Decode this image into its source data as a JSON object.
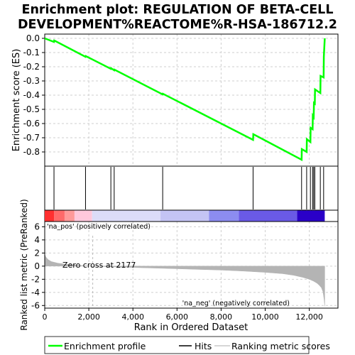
{
  "chart_data": {
    "type": "line",
    "title_line1": "Enrichment plot: REGULATION OF BETA-CELL",
    "title_line2": "DEVELOPMENT%REACTOME%R-HSA-186712.2",
    "es_panel": {
      "ylabel": "Enrichment score (ES)",
      "yticks": [
        0.0,
        -0.1,
        -0.2,
        -0.3,
        -0.4,
        -0.5,
        -0.6,
        -0.7,
        -0.8
      ],
      "ylim": [
        -0.9,
        0.03
      ],
      "series_color": "#00ff00",
      "profile_x": [
        0,
        420,
        430,
        1850,
        1860,
        3000,
        3010,
        3150,
        3160,
        5350,
        5360,
        9450,
        9460,
        11650,
        11660,
        11880,
        11890,
        12050,
        12060,
        12150,
        12160,
        12200,
        12210,
        12250,
        12260,
        12500,
        12510,
        12650,
        12660,
        12700
      ],
      "profile_y": [
        0.0,
        -0.025,
        -0.015,
        -0.13,
        -0.125,
        -0.215,
        -0.21,
        -0.225,
        -0.22,
        -0.395,
        -0.39,
        -0.715,
        -0.675,
        -0.855,
        -0.78,
        -0.8,
        -0.71,
        -0.73,
        -0.63,
        -0.64,
        -0.545,
        -0.555,
        -0.455,
        -0.46,
        -0.36,
        -0.385,
        -0.265,
        -0.275,
        -0.13,
        0.0
      ]
    },
    "hits": [
      420,
      1850,
      3000,
      3150,
      5350,
      9450,
      11650,
      11880,
      12050,
      12150,
      12200,
      12250,
      12500,
      12650
    ],
    "color_band": [
      {
        "from": 0,
        "to": 420,
        "color": "#ff3030"
      },
      {
        "from": 420,
        "to": 900,
        "color": "#ff6a6a"
      },
      {
        "from": 900,
        "to": 1350,
        "color": "#ff9a9a"
      },
      {
        "from": 1350,
        "to": 2150,
        "color": "#ffc8dc"
      },
      {
        "from": 2150,
        "to": 5250,
        "color": "#dcdcf8"
      },
      {
        "from": 5250,
        "to": 7450,
        "color": "#c4c4f4"
      },
      {
        "from": 7450,
        "to": 8800,
        "color": "#8c8cf0"
      },
      {
        "from": 8800,
        "to": 11450,
        "color": "#6a5ae6"
      },
      {
        "from": 11450,
        "to": 12700,
        "color": "#2a00c8"
      }
    ],
    "metric_panel": {
      "ylabel": "Ranked list metric (PreRanked)",
      "yticks": [
        6,
        4,
        2,
        0,
        -2,
        -4,
        -6
      ],
      "ylim": [
        -6.4,
        6.8
      ],
      "zero_cross_label": "Zero cross at 2177",
      "zero_cross": 2177,
      "pos_label": "'na_pos' (positively correlated)",
      "neg_label": "'na_neg' (negatively correlated)",
      "pos_color": "#ff0000",
      "neg_color": "#0000ff",
      "fill_color": "#b4b4b4",
      "curve_x": [
        0,
        50,
        150,
        300,
        600,
        1000,
        1500,
        2177,
        3000,
        4000,
        5000,
        6000,
        7000,
        8000,
        9000,
        10000,
        10800,
        11300,
        11700,
        12000,
        12200,
        12350,
        12450,
        12550,
        12620,
        12670,
        12700
      ],
      "curve_y": [
        1.8,
        1.4,
        1.0,
        0.7,
        0.45,
        0.28,
        0.12,
        0.0,
        -0.1,
        -0.2,
        -0.3,
        -0.4,
        -0.5,
        -0.6,
        -0.75,
        -0.95,
        -1.15,
        -1.4,
        -1.7,
        -2.0,
        -2.3,
        -2.6,
        -2.9,
        -3.3,
        -3.9,
        -5.0,
        -6.1
      ]
    },
    "xaxis": {
      "xlabel": "Rank in Ordered Dataset",
      "xticks": [
        0,
        2000,
        4000,
        6000,
        8000,
        10000,
        12000
      ],
      "xtick_labels": [
        "0",
        "2,000",
        "4,000",
        "6,000",
        "8,000",
        "10,000",
        "12,000"
      ],
      "xlim": [
        0,
        13300
      ]
    },
    "legend": {
      "items": [
        "Enrichment profile",
        "Hits",
        "Ranking metric scores"
      ],
      "placement": "bottom"
    }
  }
}
